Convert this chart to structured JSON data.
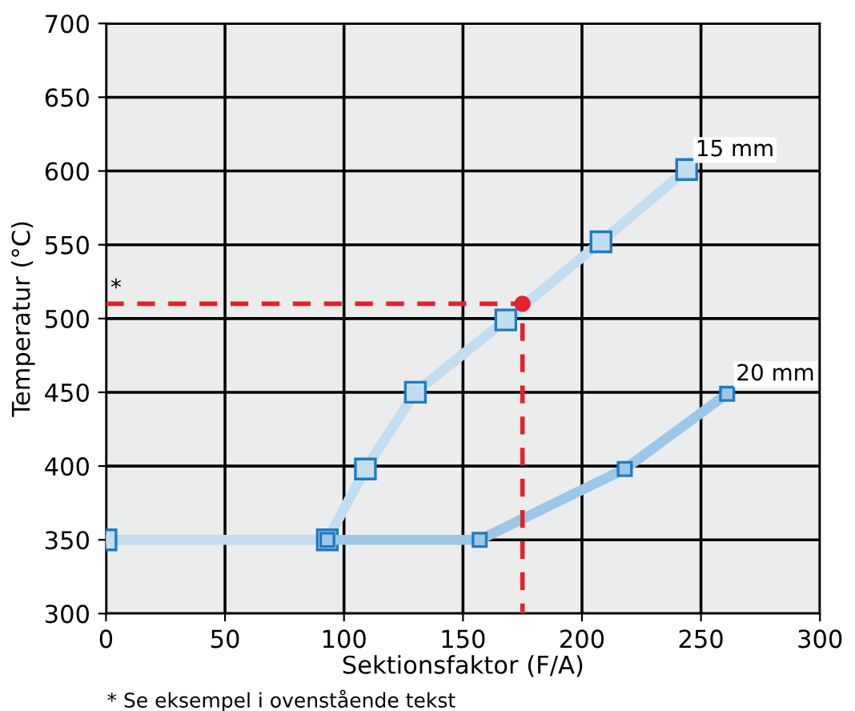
{
  "chart_data": {
    "type": "line",
    "xlabel": "Sektionsfaktor (F/A)",
    "ylabel": "Temperatur (°C)",
    "xlim": [
      0,
      300
    ],
    "xticks": [
      0,
      50,
      100,
      150,
      200,
      250,
      300
    ],
    "ylim": [
      300,
      700
    ],
    "yticks": [
      300,
      350,
      400,
      450,
      500,
      550,
      600,
      650,
      700
    ],
    "grid": true,
    "marker": "square",
    "line_style": "solid",
    "series": [
      {
        "name": "15 mm",
        "color": "#c2ddf0",
        "x": [
          0,
          93,
          109,
          130,
          168,
          208,
          244
        ],
        "values": [
          350,
          350,
          398,
          450,
          499,
          552,
          601
        ]
      },
      {
        "name": "20 mm",
        "color": "#9cc7e6",
        "x": [
          93,
          157,
          218,
          261
        ],
        "values": [
          350,
          350,
          398,
          449
        ]
      },
      {
        "type": "line",
        "color": "#e3232c",
        "line_style": "dashed",
        "marker": "none",
        "x": [
          0,
          175,
          175
        ],
        "values": [
          510,
          510,
          300
        ]
      },
      {
        "type": "scatter",
        "color": "#e3232c",
        "marker": "circle",
        "x": [
          175
        ],
        "values": [
          510
        ]
      }
    ],
    "annotations": [
      {
        "text": "*",
        "x": 0,
        "y": 510
      },
      "* Se eksempel i ovenstående tekst"
    ]
  }
}
